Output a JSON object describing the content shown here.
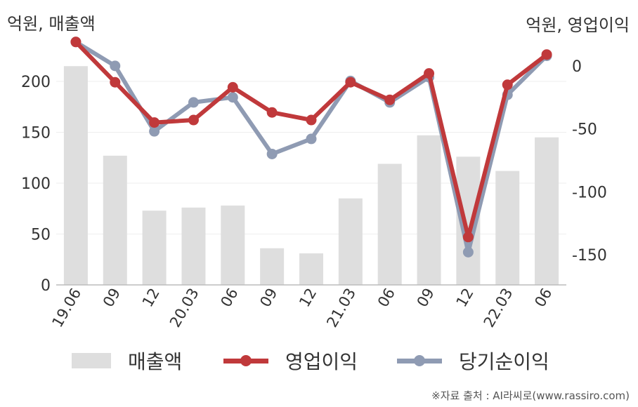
{
  "left_unit": "억원, 매출액",
  "right_unit": "억원, 영업이익",
  "source": "※자료 출처 : AI라씨로(www.rassiro.com)",
  "legend": {
    "revenue": "매출액",
    "operating_income": "영업이익",
    "net_income": "당기순이익"
  },
  "colors": {
    "revenue": "#dedede",
    "operating_income": "#c0393b",
    "net_income": "#8f9bb3",
    "axis": "#bbbbbb",
    "grid": "#eeeeee",
    "text": "#333333"
  },
  "chart_data": {
    "type": "bar+line",
    "categories": [
      "19.06",
      "09",
      "12",
      "20.03",
      "06",
      "09",
      "12",
      "21.03",
      "06",
      "09",
      "12",
      "22.03",
      "06"
    ],
    "left_axis": {
      "ticks": [
        0,
        50,
        100,
        150,
        200
      ],
      "range": [
        0,
        240
      ]
    },
    "right_axis": {
      "ticks": [
        0,
        -50,
        -100,
        -150
      ],
      "range": [
        -174,
        20
      ]
    },
    "series": [
      {
        "name": "매출액",
        "type": "bar",
        "axis": "left",
        "values": [
          215,
          127,
          73,
          76,
          78,
          36,
          31,
          85,
          119,
          147,
          126,
          112,
          145
        ]
      },
      {
        "name": "영업이익",
        "type": "line",
        "axis": "right",
        "values": [
          19,
          -13,
          -45,
          -43,
          -17,
          -37,
          -43,
          -13,
          -27,
          -6,
          -136,
          -15,
          9
        ]
      },
      {
        "name": "당기순이익",
        "type": "line",
        "axis": "right",
        "values": [
          19,
          0,
          -52,
          -29,
          -25,
          -70,
          -58,
          -12,
          -29,
          -9,
          -148,
          -23,
          8
        ]
      }
    ],
    "grid": true
  }
}
